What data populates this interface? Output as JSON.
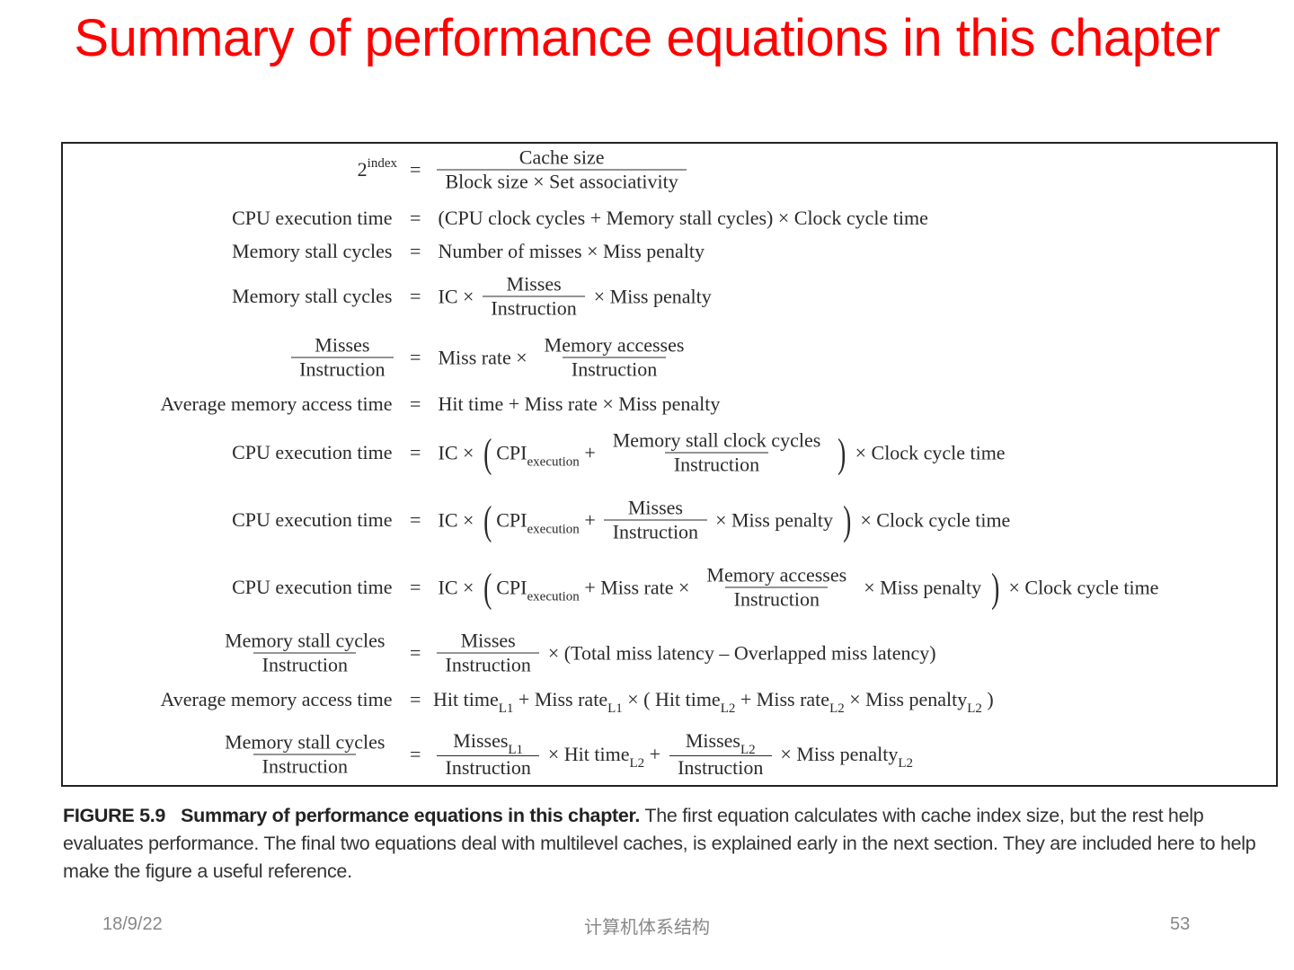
{
  "slide": {
    "title": "Summary of performance equations in this chapter",
    "footer": {
      "date": "18/9/22",
      "course": "计算机体系结构",
      "page": "53"
    },
    "title_color": "#ff0000"
  },
  "figure": {
    "equals": "=",
    "equations": [
      {
        "lhs": [
          {
            "sup": [
              "2",
              "index"
            ]
          }
        ],
        "rhs": [
          {
            "frac": [
              [
                "Cache size"
              ],
              [
                "Block size × Set associativity"
              ]
            ]
          }
        ]
      },
      {
        "lhs": [
          "CPU execution time"
        ],
        "rhs": [
          "(CPU clock cycles + Memory stall cycles) × Clock cycle time"
        ]
      },
      {
        "lhs": [
          "Memory stall cycles"
        ],
        "rhs": [
          "Number of misses × Miss penalty"
        ]
      },
      {
        "lhs": [
          "Memory stall cycles"
        ],
        "rhs": [
          "IC ×",
          {
            "frac": [
              [
                "Misses"
              ],
              [
                "Instruction"
              ]
            ]
          },
          "× Miss penalty"
        ]
      },
      {
        "lhs": [
          {
            "frac": [
              [
                "Misses"
              ],
              [
                "Instruction"
              ]
            ]
          }
        ],
        "rhs": [
          "Miss rate ×",
          {
            "frac": [
              [
                "Memory accesses"
              ],
              [
                "Instruction"
              ]
            ]
          }
        ]
      },
      {
        "lhs": [
          "Average memory access time"
        ],
        "rhs": [
          "Hit time + Miss rate × Miss penalty"
        ]
      },
      {
        "lhs": [
          "CPU execution time"
        ],
        "rhs": [
          "IC ×",
          {
            "big": "("
          },
          {
            "sub": [
              "CPI",
              "execution"
            ]
          },
          " +",
          {
            "frac": [
              [
                "Memory stall clock cycles"
              ],
              [
                "Instruction"
              ]
            ]
          },
          {
            "big": ")"
          },
          "× Clock cycle time"
        ]
      },
      {
        "lhs": [
          "CPU execution time"
        ],
        "rhs": [
          "IC ×",
          {
            "big": "("
          },
          {
            "sub": [
              "CPI",
              "execution"
            ]
          },
          " +",
          {
            "frac": [
              [
                "Misses"
              ],
              [
                "Instruction"
              ]
            ]
          },
          "× Miss penalty",
          {
            "big": ")"
          },
          "× Clock cycle time"
        ]
      },
      {
        "lhs": [
          "CPU execution time"
        ],
        "rhs": [
          "IC ×",
          {
            "big": "("
          },
          {
            "sub": [
              "CPI",
              "execution"
            ]
          },
          " + Miss rate ×",
          {
            "frac": [
              [
                "Memory accesses"
              ],
              [
                "Instruction"
              ]
            ]
          },
          "× Miss penalty",
          {
            "big": ")"
          },
          "× Clock cycle time"
        ]
      },
      {
        "lhs": [
          {
            "frac": [
              [
                "Memory stall cycles"
              ],
              [
                "Instruction"
              ]
            ]
          }
        ],
        "rhs": [
          {
            "frac": [
              [
                "Misses"
              ],
              [
                "Instruction"
              ]
            ]
          },
          "× (Total miss latency – Overlapped miss latency)"
        ]
      },
      {
        "lhs": [
          "Average memory access time"
        ],
        "rhs": [
          {
            "sub": [
              "Hit time",
              "L1"
            ]
          },
          " + ",
          {
            "sub": [
              "Miss rate",
              "L1"
            ]
          },
          " × (",
          {
            "sub": [
              "Hit time",
              "L2"
            ]
          },
          " + ",
          {
            "sub": [
              "Miss rate",
              "L2"
            ]
          },
          " × ",
          {
            "sub": [
              "Miss penalty",
              "L2"
            ]
          },
          ")"
        ]
      },
      {
        "lhs": [
          {
            "frac": [
              [
                "Memory stall cycles"
              ],
              [
                "Instruction"
              ]
            ]
          }
        ],
        "rhs": [
          {
            "frac": [
              [
                {
                  "sub": [
                    "Misses",
                    "L1"
                  ]
                }
              ],
              [
                "Instruction"
              ]
            ]
          },
          "× ",
          {
            "sub": [
              "Hit time",
              "L2"
            ]
          },
          " +",
          {
            "frac": [
              [
                {
                  "sub": [
                    "Misses",
                    "L2"
                  ]
                }
              ],
              [
                "Instruction"
              ]
            ]
          },
          "× ",
          {
            "sub": [
              "Miss penalty",
              "L2"
            ]
          }
        ]
      }
    ],
    "caption": {
      "label": "FIGURE 5.9",
      "bold": "Summary of performance equations in this chapter.",
      "text": "The first equation calculates with cache index size, but the rest help evaluates performance. The final two equations deal with multilevel caches, is explained early in the next section. They are included here to help make the figure a useful reference."
    }
  }
}
